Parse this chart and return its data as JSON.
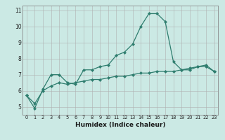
{
  "title": "",
  "xlabel": "Humidex (Indice chaleur)",
  "background_color": "#cbe9e4",
  "grid_color": "#b0b0b0",
  "line_color": "#2e7d6e",
  "xmin": -0.5,
  "xmax": 23.5,
  "ymin": 4.5,
  "ymax": 11.3,
  "yticks": [
    5,
    6,
    7,
    8,
    9,
    10,
    11
  ],
  "xticks": [
    0,
    1,
    2,
    3,
    4,
    5,
    6,
    7,
    8,
    9,
    10,
    11,
    12,
    13,
    14,
    15,
    16,
    17,
    18,
    19,
    20,
    21,
    22,
    23
  ],
  "curve1_x": [
    0,
    1,
    2,
    3,
    4,
    5,
    6,
    7,
    8,
    9,
    10,
    11,
    12,
    13,
    14,
    15,
    16,
    17,
    18,
    19,
    20,
    21,
    22,
    23
  ],
  "curve1_y": [
    5.7,
    4.9,
    6.1,
    7.0,
    7.0,
    6.5,
    6.4,
    7.3,
    7.3,
    7.5,
    7.6,
    8.2,
    8.4,
    8.9,
    10.0,
    10.8,
    10.8,
    10.3,
    7.8,
    7.3,
    7.3,
    7.5,
    7.6,
    7.2
  ],
  "curve2_x": [
    0,
    1,
    2,
    3,
    4,
    5,
    6,
    7,
    8,
    9,
    10,
    11,
    12,
    13,
    14,
    15,
    16,
    17,
    18,
    19,
    20,
    21,
    22,
    23
  ],
  "curve2_y": [
    5.7,
    5.2,
    6.0,
    6.3,
    6.5,
    6.4,
    6.5,
    6.6,
    6.7,
    6.7,
    6.8,
    6.9,
    6.9,
    7.0,
    7.1,
    7.1,
    7.2,
    7.2,
    7.2,
    7.3,
    7.4,
    7.5,
    7.5,
    7.2
  ]
}
